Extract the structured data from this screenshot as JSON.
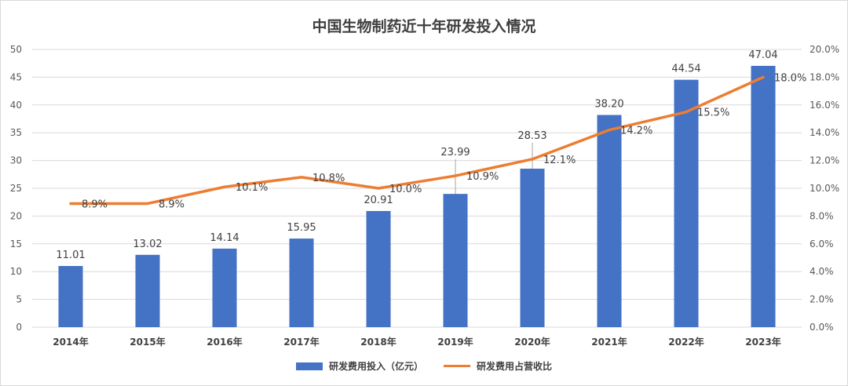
{
  "colors": {
    "bar": "#4472C4",
    "line": "#ED7D31",
    "grid": "#D9D9D9",
    "leader": "#A6A6A6"
  },
  "chart_data": {
    "type": "bar",
    "title": "中国生物制药近十年研发投入情况",
    "categories": [
      "2014年",
      "2015年",
      "2016年",
      "2017年",
      "2018年",
      "2019年",
      "2020年",
      "2021年",
      "2022年",
      "2023年"
    ],
    "series": [
      {
        "name": "研发费用投入（亿元）",
        "type": "bar",
        "axis": "left",
        "values": [
          11.01,
          13.02,
          14.14,
          15.95,
          20.91,
          23.99,
          28.53,
          38.2,
          44.54,
          47.04
        ],
        "labels": [
          "11.01",
          "13.02",
          "14.14",
          "15.95",
          "20.91",
          "23.99",
          "28.53",
          "38.20",
          "44.54",
          "47.04"
        ]
      },
      {
        "name": "研发费用占营收比",
        "type": "line",
        "axis": "right",
        "values": [
          8.9,
          8.9,
          10.1,
          10.8,
          10.0,
          10.9,
          12.1,
          14.2,
          15.5,
          18.0
        ],
        "labels": [
          "8.9%",
          "8.9%",
          "10.1%",
          "10.8%",
          "10.0%",
          "10.9%",
          "12.1%",
          "14.2%",
          "15.5%",
          "18.0%"
        ]
      }
    ],
    "ylim": [
      0,
      50
    ],
    "y2lim": [
      0,
      20
    ],
    "yticks": [
      "0",
      "5",
      "10",
      "15",
      "20",
      "25",
      "30",
      "35",
      "40",
      "45",
      "50"
    ],
    "y2ticks": [
      "0.0%",
      "2.0%",
      "4.0%",
      "6.0%",
      "8.0%",
      "10.0%",
      "12.0%",
      "14.0%",
      "16.0%",
      "18.0%",
      "20.0%"
    ],
    "grid": true,
    "legend_position": "bottom"
  }
}
